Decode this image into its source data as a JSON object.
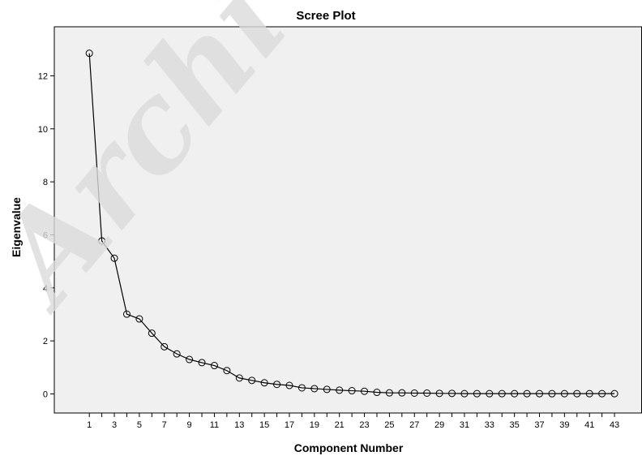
{
  "watermark": "Archi",
  "chart_data": {
    "type": "line",
    "title": "Scree Plot",
    "xlabel": "Component Number",
    "ylabel": "Eigenvalue",
    "x": [
      1,
      2,
      3,
      4,
      5,
      6,
      7,
      8,
      9,
      10,
      11,
      12,
      13,
      14,
      15,
      16,
      17,
      18,
      19,
      20,
      21,
      22,
      23,
      24,
      25,
      26,
      27,
      28,
      29,
      30,
      31,
      32,
      33,
      34,
      35,
      36,
      37,
      38,
      39,
      40,
      41,
      42,
      43
    ],
    "series": [
      {
        "values": [
          12.85,
          5.77,
          5.12,
          3.01,
          2.83,
          2.29,
          1.78,
          1.51,
          1.3,
          1.18,
          1.07,
          0.88,
          0.6,
          0.51,
          0.42,
          0.36,
          0.32,
          0.23,
          0.2,
          0.17,
          0.14,
          0.12,
          0.1,
          0.06,
          0.04,
          0.04,
          0.03,
          0.03,
          0.02,
          0.02,
          0.01,
          0.01,
          0.01,
          0.01,
          0.01,
          0.01,
          0.01,
          0.01,
          0.01,
          0.01,
          0.01,
          0.01,
          0.01
        ]
      }
    ],
    "xticks": [
      1,
      3,
      5,
      7,
      9,
      11,
      13,
      15,
      17,
      19,
      21,
      23,
      25,
      27,
      29,
      31,
      33,
      35,
      37,
      39,
      41,
      43
    ],
    "yticks": [
      0,
      2,
      4,
      6,
      8,
      10,
      12
    ],
    "xlim": [
      -1.8,
      45.2
    ],
    "ylim": [
      -0.72,
      13.85
    ],
    "grid": false,
    "plot_background": "#f0f0f0",
    "line_color": "#000000",
    "marker": "open-circle"
  }
}
